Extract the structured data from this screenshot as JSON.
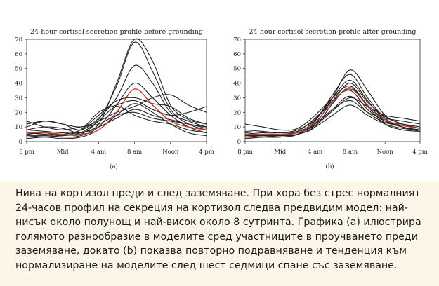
{
  "chart_data": [
    {
      "type": "line",
      "title": "24-hour cortisol secretion profile before grounding",
      "panel_label": "(a)",
      "x_ticks": [
        "8 pm",
        "Mid",
        "4 am",
        "8 am",
        "Noon",
        "4 pm"
      ],
      "x": [
        0,
        2,
        4,
        6,
        8,
        10,
        12,
        14,
        16,
        18,
        20
      ],
      "ylim": [
        0,
        70
      ],
      "y_ticks": [
        0,
        10,
        20,
        30,
        40,
        50,
        60,
        70
      ],
      "series": [
        {
          "values": [
            8,
            10,
            9,
            6,
            12,
            40,
            70,
            55,
            25,
            15,
            12
          ],
          "color": "#222222"
        },
        {
          "values": [
            5,
            6,
            5,
            5,
            15,
            38,
            68,
            48,
            22,
            12,
            8
          ],
          "color": "#222222"
        },
        {
          "values": [
            10,
            14,
            12,
            8,
            16,
            30,
            52,
            40,
            20,
            14,
            10
          ],
          "color": "#222222"
        },
        {
          "values": [
            3,
            4,
            3,
            4,
            10,
            25,
            40,
            30,
            18,
            10,
            6
          ],
          "color": "#222222"
        },
        {
          "values": [
            6,
            5,
            5,
            8,
            18,
            28,
            30,
            26,
            24,
            16,
            12
          ],
          "color": "#222222"
        },
        {
          "values": [
            12,
            14,
            12,
            10,
            14,
            20,
            24,
            30,
            32,
            25,
            20
          ],
          "color": "#222222"
        },
        {
          "values": [
            5,
            6,
            4,
            8,
            20,
            25,
            28,
            22,
            18,
            20,
            24
          ],
          "color": "#222222"
        },
        {
          "values": [
            8,
            7,
            6,
            6,
            10,
            16,
            22,
            18,
            15,
            12,
            10
          ],
          "color": "#222222"
        },
        {
          "values": [
            2,
            3,
            2,
            3,
            8,
            18,
            26,
            20,
            12,
            6,
            4
          ],
          "color": "#222222"
        },
        {
          "values": [
            14,
            10,
            8,
            10,
            12,
            18,
            20,
            16,
            14,
            12,
            9
          ],
          "color": "#222222"
        },
        {
          "values": [
            4,
            4,
            4,
            6,
            14,
            24,
            18,
            14,
            12,
            8,
            6
          ],
          "color": "#222222"
        },
        {
          "values": [
            6,
            6,
            5,
            5,
            8,
            20,
            36,
            25,
            14,
            10,
            8
          ],
          "color": "#c0392b"
        }
      ]
    },
    {
      "type": "line",
      "title": "24-hour cortisol secretion profile after grounding",
      "panel_label": "(b)",
      "x_ticks": [
        "8 pm",
        "Mid",
        "4 am",
        "8 am",
        "Noon",
        "4 pm"
      ],
      "x": [
        0,
        2,
        4,
        6,
        8,
        10,
        12,
        14,
        16,
        18,
        20
      ],
      "ylim": [
        0,
        70
      ],
      "y_ticks": [
        0,
        10,
        20,
        30,
        40,
        50,
        60,
        70
      ],
      "series": [
        {
          "values": [
            5,
            4,
            5,
            6,
            12,
            30,
            49,
            35,
            18,
            12,
            9
          ],
          "color": "#222222"
        },
        {
          "values": [
            4,
            4,
            4,
            5,
            14,
            32,
            46,
            30,
            16,
            10,
            8
          ],
          "color": "#222222"
        },
        {
          "values": [
            3,
            3,
            3,
            5,
            15,
            30,
            42,
            28,
            15,
            10,
            7
          ],
          "color": "#222222"
        },
        {
          "values": [
            6,
            5,
            5,
            7,
            16,
            28,
            40,
            27,
            17,
            12,
            9
          ],
          "color": "#222222"
        },
        {
          "values": [
            12,
            10,
            8,
            9,
            18,
            30,
            38,
            25,
            14,
            10,
            8
          ],
          "color": "#222222"
        },
        {
          "values": [
            2,
            3,
            4,
            5,
            10,
            26,
            37,
            24,
            12,
            8,
            7
          ],
          "color": "#222222"
        },
        {
          "values": [
            7,
            6,
            6,
            8,
            15,
            28,
            35,
            22,
            14,
            12,
            10
          ],
          "color": "#222222"
        },
        {
          "values": [
            4,
            5,
            5,
            6,
            12,
            22,
            31,
            20,
            13,
            11,
            9
          ],
          "color": "#222222"
        },
        {
          "values": [
            8,
            7,
            6,
            7,
            12,
            22,
            28,
            20,
            16,
            14,
            12
          ],
          "color": "#222222"
        },
        {
          "values": [
            3,
            4,
            4,
            5,
            10,
            18,
            25,
            18,
            12,
            9,
            8
          ],
          "color": "#222222"
        },
        {
          "values": [
            5,
            5,
            4,
            6,
            11,
            21,
            30,
            24,
            18,
            16,
            14
          ],
          "color": "#222222"
        },
        {
          "values": [
            5,
            5,
            5,
            6,
            13,
            27,
            36,
            25,
            15,
            11,
            9
          ],
          "color": "#c0392b"
        }
      ]
    }
  ],
  "caption": "Нива на кортизол преди и след заземяване. При хора без стрес нормалният 24-часов профил на секреция на кортизол следва предвидим модел: най-нисък около полунощ и най-висок около 8 сутринта. Графика (а) илюстрира голямото разнообразие в моделите сред участниците в проучването преди заземяване, докато (b) показва повторно подравняване и тенденция към нормализиране на моделите след шест седмици спане със заземяване."
}
